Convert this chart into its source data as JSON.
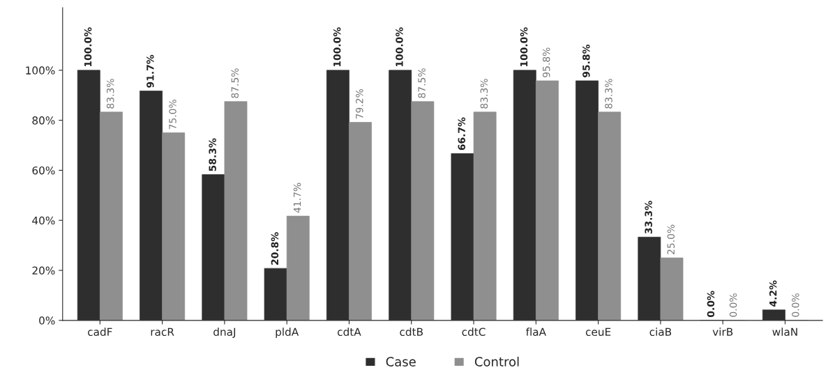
{
  "chart_data": {
    "type": "bar",
    "categories": [
      "cadF",
      "racR",
      "dnaJ",
      "pldA",
      "cdtA",
      "cdtB",
      "cdtC",
      "flaA",
      "ceuE",
      "ciaB",
      "virB",
      "wlaN"
    ],
    "series": [
      {
        "name": "Case",
        "color": "#2e2e2e",
        "values": [
          100.0,
          91.7,
          58.3,
          20.8,
          100.0,
          100.0,
          66.7,
          100.0,
          95.8,
          33.3,
          0.0,
          4.2
        ],
        "value_labels": [
          "100.0%",
          "91.7%",
          "58.3%",
          "20.8%",
          "100.0%",
          "100.0%",
          "66.7%",
          "100.0%",
          "95.8%",
          "33.3%",
          "0.0%",
          "4.2%"
        ]
      },
      {
        "name": "Control",
        "color": "#8f8f8f",
        "values": [
          83.3,
          75.0,
          87.5,
          41.7,
          79.2,
          87.5,
          83.3,
          95.8,
          83.3,
          25.0,
          0.0,
          0.0
        ],
        "value_labels": [
          "83.3%",
          "75.0%",
          "87.5%",
          "41.7%",
          "79.2%",
          "87.5%",
          "83.3%",
          "95.8%",
          "83.3%",
          "25.0%",
          "0.0%",
          "0.0%"
        ]
      }
    ],
    "ylim": [
      0,
      125
    ],
    "yticks": [
      {
        "value": 0,
        "label": "0%"
      },
      {
        "value": 20,
        "label": "20%"
      },
      {
        "value": 40,
        "label": "40%"
      },
      {
        "value": 60,
        "label": "60%"
      },
      {
        "value": 80,
        "label": "80%"
      },
      {
        "value": 100,
        "label": "100%"
      }
    ],
    "grid": false,
    "legend": "bottom"
  }
}
